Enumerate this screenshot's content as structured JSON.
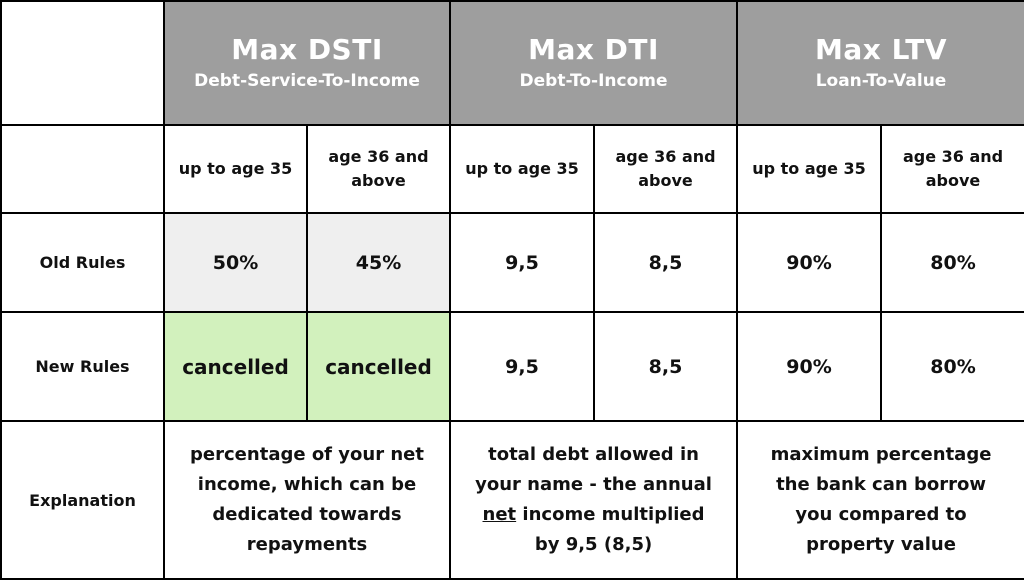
{
  "columns": {
    "dsti": {
      "title": "Max DSTI",
      "subtitle": "Debt-Service-To-Income"
    },
    "dti": {
      "title": "Max DTI",
      "subtitle": "Debt-To-Income"
    },
    "ltv": {
      "title": "Max LTV",
      "subtitle": "Loan-To-Value"
    }
  },
  "age_groups": {
    "young": "up to age 35",
    "older": "age 36 and above"
  },
  "rows": {
    "old": {
      "label": "Old Rules",
      "dsti_young": "50%",
      "dsti_older": "45%",
      "dti_young": "9,5",
      "dti_older": "8,5",
      "ltv_young": "90%",
      "ltv_older": "80%"
    },
    "new": {
      "label": "New Rules",
      "dsti_young": "cancelled",
      "dsti_older": "cancelled",
      "dti_young": "9,5",
      "dti_older": "8,5",
      "ltv_young": "90%",
      "ltv_older": "80%"
    },
    "explanation": {
      "label": "Explanation",
      "dsti": "percentage of your net income, which can be dedicated towards repayments",
      "dti_before": "total debt allowed in your name - the annual ",
      "dti_emphasis": "net",
      "dti_after": " income multiplied by 9,5 (8,5)",
      "ltv": "maximum percentage the bank can borrow you compared to property value"
    }
  },
  "colors": {
    "header_bg": "#9e9e9e",
    "header_text": "#ffffff",
    "old_dsti_bg": "#efefef",
    "new_dsti_bg": "#d2f1bd",
    "border": "#000000"
  }
}
